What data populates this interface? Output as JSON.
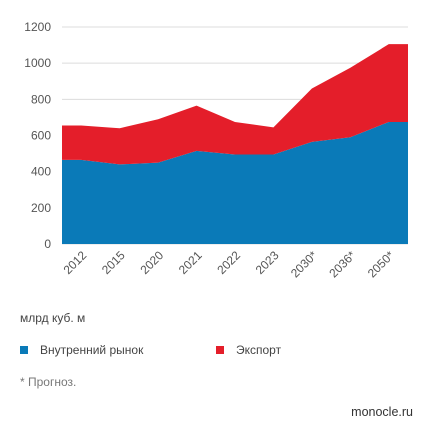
{
  "chart_data": {
    "type": "area",
    "stacked": true,
    "categories": [
      "2012",
      "2015",
      "2020",
      "2021",
      "2022",
      "2023",
      "2030*",
      "2036*",
      "2050*"
    ],
    "series": [
      {
        "name": "Внутренний рынок",
        "values": [
          465,
          440,
          450,
          515,
          495,
          495,
          565,
          590,
          675
        ],
        "color": "#0a7ab8"
      },
      {
        "name": "Экспорт",
        "values": [
          190,
          200,
          240,
          250,
          180,
          150,
          295,
          385,
          430
        ],
        "color": "#e41e2a"
      }
    ],
    "ylim": [
      0,
      1200
    ],
    "yticks": [
      0,
      200,
      400,
      600,
      800,
      1000,
      1200
    ],
    "grid": true,
    "legend": "bottom"
  },
  "labels": {
    "unit": "млрд куб. м",
    "legend_domestic": "Внутренний рынок",
    "legend_export": "Экспорт",
    "note": "* Прогноз.",
    "source": "monocle.ru"
  }
}
